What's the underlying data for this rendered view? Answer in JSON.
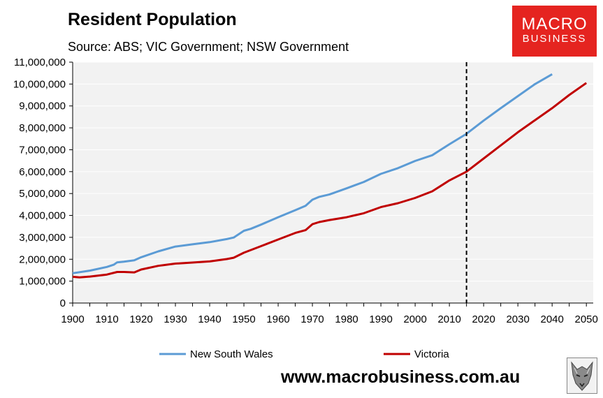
{
  "title": "Resident Population",
  "subtitle": "Source: ABS; VIC Government; NSW Government",
  "logo": {
    "line1": "MACRO",
    "line2": "BUSINESS"
  },
  "footer": {
    "url": "www.macrobusiness.com.au"
  },
  "colors": {
    "nsw": "#5b9bd5",
    "vic": "#c00000",
    "plot_bg": "#f2f2f2",
    "gridline": "#ffffff",
    "logo_bg": "#e52420"
  },
  "chart_data": {
    "type": "line",
    "title": "Resident Population",
    "xlabel": "",
    "ylabel": "",
    "xlim": [
      1900,
      2052
    ],
    "ylim": [
      0,
      11000000
    ],
    "x_ticks": [
      "1900",
      "1910",
      "1920",
      "1930",
      "1940",
      "1950",
      "1960",
      "1970",
      "1980",
      "1990",
      "2000",
      "2010",
      "2020",
      "2030",
      "2040",
      "2050"
    ],
    "y_ticks": [
      "0",
      "1,000,000",
      "2,000,000",
      "3,000,000",
      "4,000,000",
      "5,000,000",
      "6,000,000",
      "7,000,000",
      "8,000,000",
      "9,000,000",
      "10,000,000",
      "11,000,000"
    ],
    "projection_start_year": 2015,
    "legend": [
      "New South Wales",
      "Victoria"
    ],
    "series": [
      {
        "name": "New South Wales",
        "x": [
          1900,
          1905,
          1910,
          1912,
          1913,
          1915,
          1918,
          1920,
          1925,
          1930,
          1935,
          1940,
          1945,
          1947,
          1950,
          1952,
          1955,
          1960,
          1965,
          1968,
          1970,
          1972,
          1975,
          1980,
          1985,
          1990,
          1995,
          2000,
          2005,
          2010,
          2015,
          2020,
          2025,
          2030,
          2035,
          2040
        ],
        "y": [
          1360000,
          1480000,
          1650000,
          1750000,
          1860000,
          1890000,
          1950000,
          2090000,
          2360000,
          2580000,
          2680000,
          2780000,
          2920000,
          2990000,
          3300000,
          3390000,
          3580000,
          3920000,
          4240000,
          4440000,
          4720000,
          4850000,
          4960000,
          5240000,
          5530000,
          5900000,
          6160000,
          6490000,
          6750000,
          7250000,
          7730000,
          8330000,
          8900000,
          9450000,
          10000000,
          10450000
        ]
      },
      {
        "name": "Victoria",
        "x": [
          1900,
          1902,
          1905,
          1910,
          1913,
          1915,
          1918,
          1920,
          1925,
          1930,
          1935,
          1940,
          1945,
          1947,
          1950,
          1955,
          1960,
          1965,
          1968,
          1970,
          1972,
          1975,
          1980,
          1985,
          1990,
          1995,
          2000,
          2005,
          2010,
          2015,
          2020,
          2025,
          2030,
          2035,
          2040,
          2045,
          2050
        ],
        "y": [
          1200000,
          1170000,
          1210000,
          1300000,
          1420000,
          1420000,
          1400000,
          1530000,
          1700000,
          1800000,
          1850000,
          1900000,
          2010000,
          2070000,
          2300000,
          2600000,
          2900000,
          3200000,
          3330000,
          3600000,
          3700000,
          3790000,
          3920000,
          4100000,
          4380000,
          4560000,
          4800000,
          5100000,
          5600000,
          6000000,
          6600000,
          7200000,
          7800000,
          8350000,
          8900000,
          9500000,
          10050000
        ]
      }
    ]
  }
}
